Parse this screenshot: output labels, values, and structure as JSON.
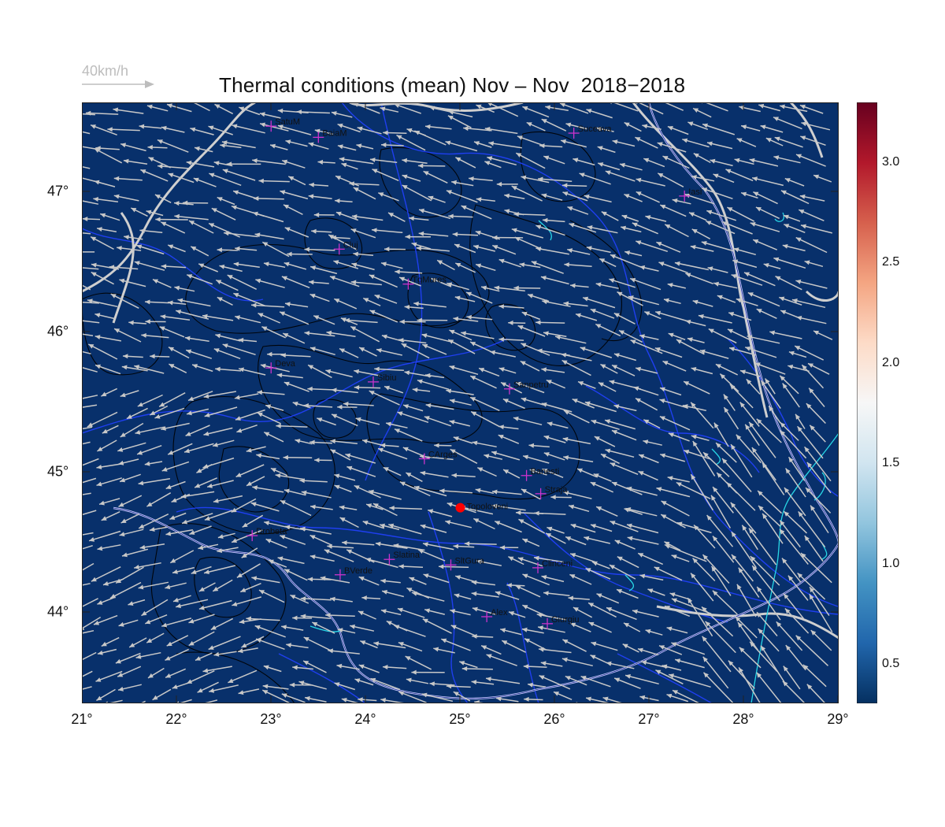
{
  "title": "Thermal conditions (mean) Nov – Nov  2018−2018",
  "wind_scale": {
    "label": "40km/h",
    "color": "#bdbdbd"
  },
  "x_ticks": [
    "21°",
    "22°",
    "23°",
    "24°",
    "25°",
    "26°",
    "27°",
    "28°",
    "29°"
  ],
  "y_ticks": [
    "47°",
    "46°",
    "45°",
    "44°"
  ],
  "colorbar": {
    "labels": [
      "3.0",
      "2.5",
      "2.0",
      "1.5",
      "1.0",
      "0.5"
    ],
    "colors": [
      "#67001f",
      "#b2182b",
      "#d6604d",
      "#f4a582",
      "#fddbc7",
      "#f7f7f7",
      "#d1e5f0",
      "#92c5de",
      "#4393c3",
      "#2166ac",
      "#053061"
    ]
  },
  "map": {
    "background": "#08306b",
    "region": {
      "lon": [
        21,
        29
      ],
      "lat": [
        43.3,
        47.6
      ]
    },
    "highlight": {
      "name": "Topoloveni",
      "lon": 25.0,
      "lat": 44.7,
      "color": "#ff0000"
    },
    "stations": [
      {
        "name": "SatuM",
        "lon": 23.0,
        "lat": 47.43
      },
      {
        "name": "BaiaM",
        "lon": 23.5,
        "lat": 47.35
      },
      {
        "name": "Suceava",
        "lon": 26.2,
        "lat": 47.38
      },
      {
        "name": "Iasi",
        "lon": 27.37,
        "lat": 46.93
      },
      {
        "name": "Cluj",
        "lon": 23.72,
        "lat": 46.55
      },
      {
        "name": "TgMures",
        "lon": 24.45,
        "lat": 46.3
      },
      {
        "name": "Deva",
        "lon": 23.0,
        "lat": 45.7
      },
      {
        "name": "Sibiu",
        "lon": 24.08,
        "lat": 45.6
      },
      {
        "name": "Sanpetru",
        "lon": 25.52,
        "lat": 45.55
      },
      {
        "name": "CArges",
        "lon": 24.62,
        "lat": 45.05
      },
      {
        "name": "Banesti",
        "lon": 25.7,
        "lat": 44.93
      },
      {
        "name": "Straja",
        "lon": 25.85,
        "lat": 44.8
      },
      {
        "name": "Drobeta",
        "lon": 22.8,
        "lat": 44.5
      },
      {
        "name": "Slatina",
        "lon": 24.25,
        "lat": 44.33
      },
      {
        "name": "SltGura",
        "lon": 24.9,
        "lat": 44.29
      },
      {
        "name": "Clinceni",
        "lon": 25.82,
        "lat": 44.27
      },
      {
        "name": "BVerde",
        "lon": 23.73,
        "lat": 44.22
      },
      {
        "name": "Alex",
        "lon": 25.28,
        "lat": 43.92
      },
      {
        "name": "Giurgiu",
        "lon": 25.92,
        "lat": 43.87
      }
    ]
  }
}
